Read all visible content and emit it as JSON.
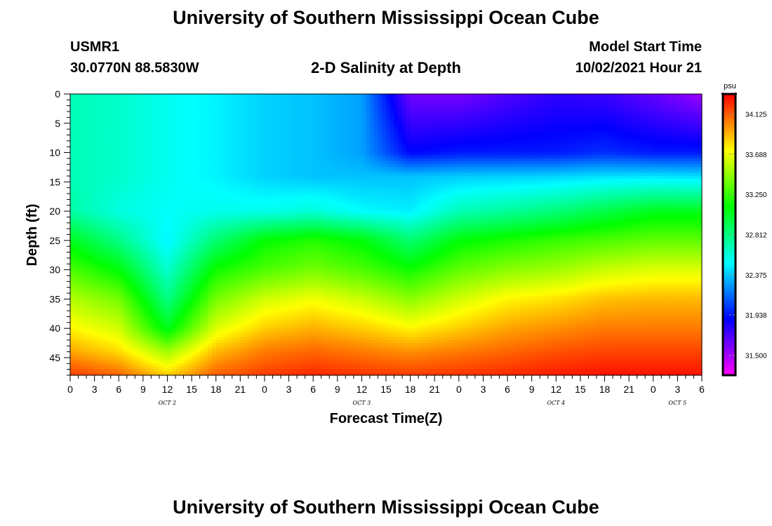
{
  "header": {
    "title": "University of Southern Mississippi Ocean Cube",
    "station_id": "USMR1",
    "station_coords": "30.0770N  88.5830W",
    "plot_title": "2-D Salinity at Depth",
    "model_start_label": "Model Start Time",
    "model_start_value": "10/02/2021 Hour 21"
  },
  "footer": {
    "title": "University of Southern Mississippi Ocean Cube"
  },
  "chart_data": {
    "type": "heatmap",
    "title": "2-D Salinity at Depth",
    "xlabel": "Forecast Time(Z)",
    "ylabel": "Depth (ft)",
    "x_hours_since_start": [
      0,
      78
    ],
    "x_tick_labels": [
      "0",
      "3",
      "6",
      "9",
      "12",
      "15",
      "18",
      "21",
      "0",
      "3",
      "6",
      "9",
      "12",
      "15",
      "18",
      "21",
      "0",
      "3",
      "6",
      "9",
      "12",
      "15",
      "18",
      "21",
      "0",
      "3",
      "6"
    ],
    "day_labels": [
      {
        "label": "OCT 2",
        "tick_index": 4
      },
      {
        "label": "OCT 3",
        "tick_index": 12
      },
      {
        "label": "OCT 4",
        "tick_index": 20
      },
      {
        "label": "OCT 5",
        "tick_index": 25
      }
    ],
    "ylim": [
      0,
      48
    ],
    "y_ticks": [
      0,
      5,
      10,
      15,
      20,
      25,
      30,
      35,
      40,
      45
    ],
    "colorbar": {
      "unit": "psu",
      "range": [
        31.282,
        34.343
      ],
      "tick_values": [
        34.125,
        33.688,
        33.25,
        32.812,
        32.375,
        31.938,
        31.5
      ],
      "tick_labels": [
        "34.125",
        "33.688",
        "33.250",
        "32.812",
        "32.375",
        "31.938",
        "31.500"
      ],
      "colors": [
        "#ff00ff",
        "#0000ff",
        "#00ffff",
        "#00ff00",
        "#ffff00",
        "#ff0000"
      ]
    },
    "profile_grid": {
      "depths": [
        0,
        10,
        14,
        20,
        25,
        30,
        35,
        40,
        44,
        48
      ],
      "times": [
        0,
        6,
        12,
        18,
        24,
        30,
        36,
        42,
        48,
        54,
        60,
        66,
        72,
        78
      ],
      "salinity": [
        [
          32.68,
          32.63,
          32.54,
          32.48,
          32.4,
          32.36,
          32.28,
          31.62,
          31.6,
          31.7,
          31.78,
          31.75,
          31.65,
          31.52
        ],
        [
          32.68,
          32.63,
          32.54,
          32.48,
          32.4,
          32.36,
          32.28,
          31.9,
          31.95,
          31.95,
          31.95,
          32.0,
          31.95,
          31.95
        ],
        [
          32.68,
          32.63,
          32.54,
          32.48,
          32.4,
          32.36,
          32.36,
          32.36,
          32.38,
          32.39,
          32.4,
          32.43,
          32.44,
          32.42
        ],
        [
          32.72,
          32.58,
          32.52,
          32.55,
          32.55,
          32.6,
          32.5,
          32.47,
          32.68,
          32.75,
          32.83,
          32.95,
          33.05,
          33.05
        ],
        [
          33.05,
          32.8,
          32.48,
          32.85,
          33.12,
          33.2,
          33.1,
          32.85,
          33.1,
          33.18,
          33.25,
          33.3,
          33.35,
          33.35
        ],
        [
          33.3,
          33.1,
          32.62,
          33.15,
          33.3,
          33.4,
          33.3,
          33.15,
          33.35,
          33.45,
          33.5,
          33.6,
          33.65,
          33.65
        ],
        [
          33.55,
          33.4,
          32.8,
          33.4,
          33.62,
          33.7,
          33.6,
          33.45,
          33.62,
          33.75,
          33.8,
          33.88,
          33.9,
          33.9
        ],
        [
          33.75,
          33.62,
          33.05,
          33.65,
          33.85,
          33.92,
          33.85,
          33.75,
          33.85,
          33.95,
          34.0,
          34.05,
          34.05,
          34.05
        ],
        [
          33.95,
          33.82,
          33.5,
          33.9,
          34.05,
          34.1,
          34.05,
          34.0,
          34.05,
          34.1,
          34.15,
          34.18,
          34.18,
          34.18
        ],
        [
          34.2,
          34.1,
          33.85,
          34.12,
          34.2,
          34.25,
          34.22,
          34.2,
          34.22,
          34.25,
          34.28,
          34.3,
          34.3,
          34.3
        ]
      ]
    }
  }
}
